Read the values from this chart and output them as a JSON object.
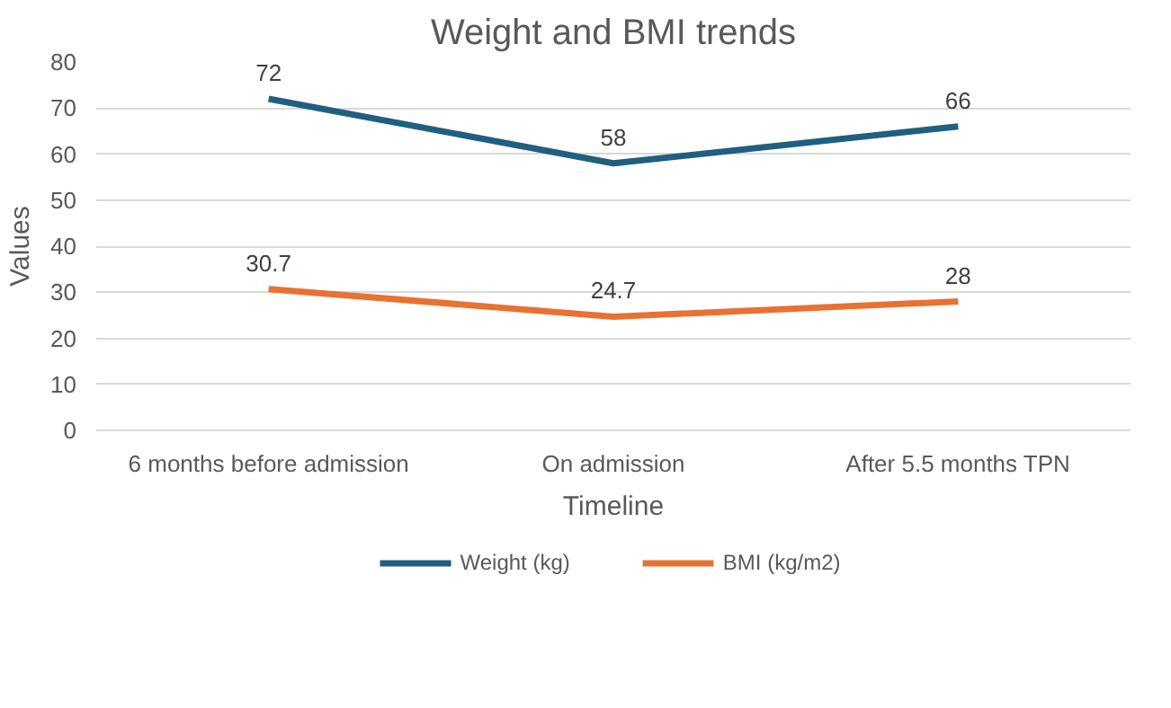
{
  "chart_data": {
    "type": "line",
    "title": "Weight and BMI trends",
    "xlabel": "Timeline",
    "ylabel": "Values",
    "categories": [
      "6 months before admission",
      "On admission",
      "After 5.5 months TPN"
    ],
    "series": [
      {
        "name": "Weight (kg)",
        "color": "#1f5f7f",
        "values": [
          72,
          58,
          66
        ]
      },
      {
        "name": "BMI (kg/m2)",
        "color": "#e97132",
        "values": [
          30.7,
          24.7,
          28
        ]
      }
    ],
    "ylim": [
      0,
      80
    ],
    "yticks": [
      0,
      10,
      20,
      30,
      40,
      50,
      60,
      70,
      80
    ],
    "grid": "y",
    "legend": "bottom",
    "data_labels": true,
    "marker": "none",
    "line_style": "solid"
  }
}
